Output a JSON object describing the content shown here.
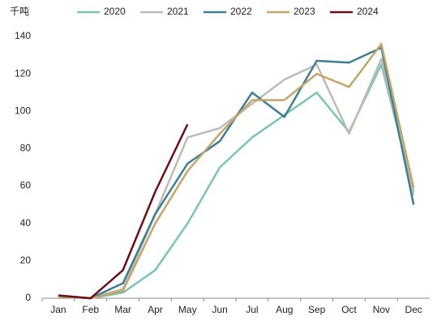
{
  "chart_data": {
    "type": "line",
    "unit_label": "千吨",
    "categories": [
      "Jan",
      "Feb",
      "Mar",
      "Apr",
      "May",
      "Jun",
      "Jul",
      "Aug",
      "Sep",
      "Oct",
      "Nov",
      "Dec"
    ],
    "series": [
      {
        "name": "2020",
        "color": "#7cc4b2",
        "values": [
          1,
          0,
          3,
          15,
          40,
          70,
          86,
          98,
          110,
          89,
          125,
          57
        ]
      },
      {
        "name": "2021",
        "color": "#bcbcb4",
        "values": [
          1,
          0,
          5,
          45,
          86,
          91,
          104,
          117,
          125,
          88,
          128,
          55
        ]
      },
      {
        "name": "2022",
        "color": "#3d7e95",
        "values": [
          1,
          0,
          8,
          45,
          72,
          84,
          110,
          97,
          127,
          126,
          134,
          50
        ]
      },
      {
        "name": "2023",
        "color": "#c4a46a",
        "values": [
          1,
          0,
          4,
          40,
          68,
          88,
          106,
          106,
          120,
          113,
          136,
          59
        ]
      },
      {
        "name": "2024",
        "color": "#6b0f17",
        "values": [
          1.5,
          0,
          15,
          57,
          93,
          null,
          null,
          null,
          null,
          null,
          null,
          null
        ]
      }
    ],
    "ylim": [
      0,
      140
    ],
    "yticks": [
      0,
      20,
      40,
      60,
      80,
      100,
      120,
      140
    ],
    "grid": false,
    "legend": "top"
  }
}
